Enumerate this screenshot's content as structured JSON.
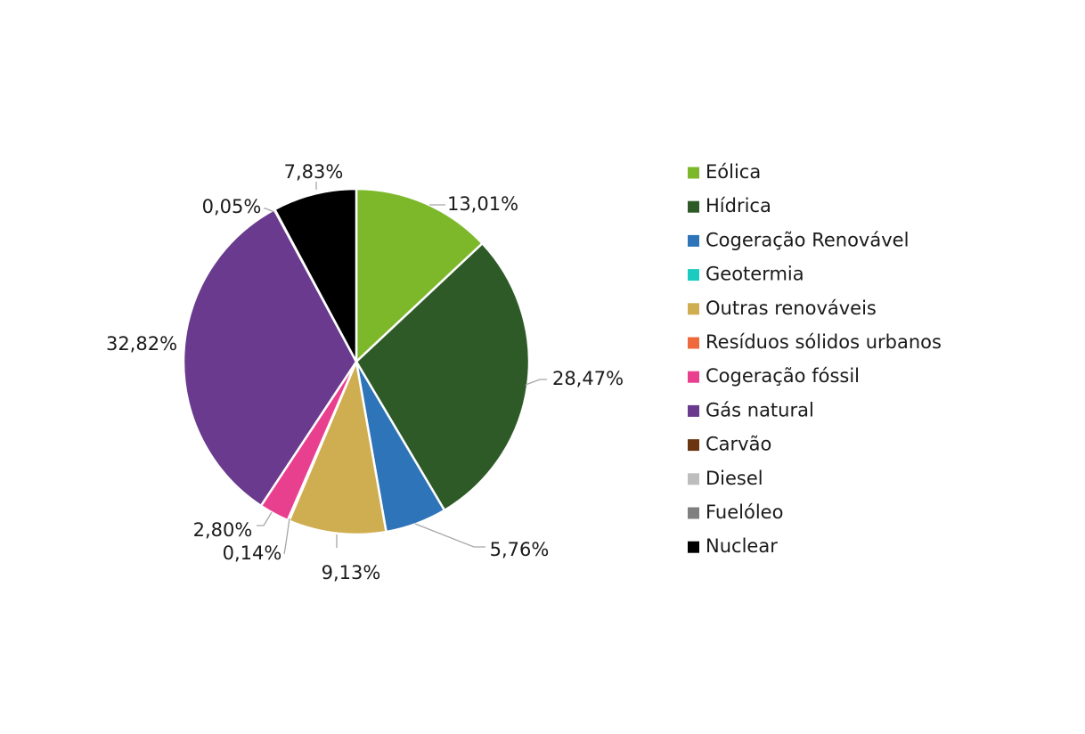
{
  "chart_data": {
    "type": "pie",
    "title": "",
    "legend_position": "right",
    "slices": [
      {
        "name": "Eólica",
        "value": 13.01,
        "label": "13,01%",
        "color": "#7DB82B"
      },
      {
        "name": "Hídrica",
        "value": 28.47,
        "label": "28,47%",
        "color": "#2E5A27"
      },
      {
        "name": "Cogeração Renovável",
        "value": 5.76,
        "label": "5,76%",
        "color": "#2E74B8"
      },
      {
        "name": "Geotermia",
        "value": 0,
        "label": "",
        "color": "#1CCBC0"
      },
      {
        "name": "Outras renováveis",
        "value": 9.13,
        "label": "9,13%",
        "color": "#CFAE52"
      },
      {
        "name": "Resíduos sólidos urbanos",
        "value": 0.14,
        "label": "0,14%",
        "color": "#EE6A3C"
      },
      {
        "name": "Cogeração fóssil",
        "value": 2.8,
        "label": "2,80%",
        "color": "#E8408F"
      },
      {
        "name": "Gás natural",
        "value": 32.82,
        "label": "32,82%",
        "color": "#693A8D"
      },
      {
        "name": "Carvão",
        "value": 0,
        "label": "",
        "color": "#6B360F"
      },
      {
        "name": "Diesel",
        "value": 0,
        "label": "",
        "color": "#BDBDBD"
      },
      {
        "name": "Fuelóleo",
        "value": 0.05,
        "label": "0,05%",
        "color": "#7F7F7F"
      },
      {
        "name": "Nuclear",
        "value": 7.83,
        "label": "7,83%",
        "color": "#000000"
      }
    ]
  }
}
